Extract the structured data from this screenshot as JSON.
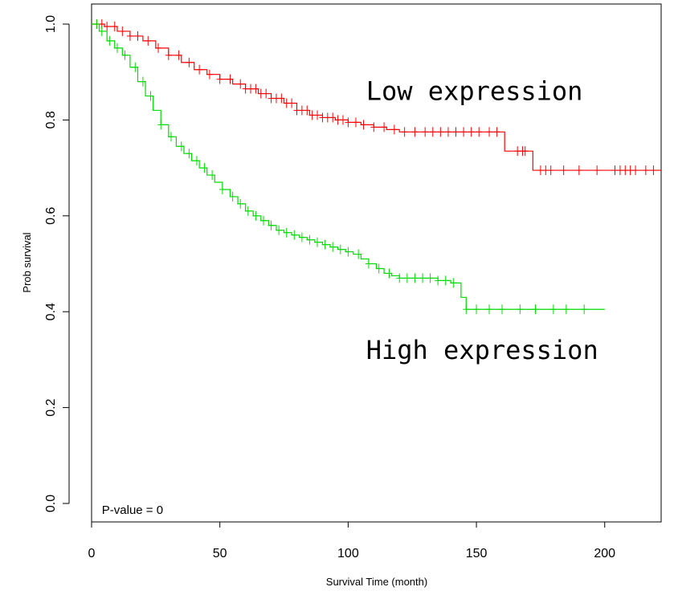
{
  "chart_data": {
    "type": "line",
    "step": true,
    "title": "",
    "xlabel": "Survival Time (month)",
    "ylabel": "Prob survival",
    "xlim": [
      0,
      222
    ],
    "ylim": [
      0,
      1.0
    ],
    "xticks": [
      0,
      50,
      100,
      150,
      200
    ],
    "yticks": [
      0.0,
      0.2,
      0.4,
      0.6,
      0.8,
      1.0
    ],
    "ytick_labels": [
      "0.0",
      "0.2",
      "0.4",
      "0.6",
      "0.8",
      "1.0"
    ],
    "grid": false,
    "legend": "none",
    "annotations": [
      {
        "text": "Low expression",
        "x": 107,
        "y": 0.86
      },
      {
        "text": "High expression",
        "x": 107,
        "y": 0.32
      },
      {
        "text": "P-value = 0",
        "x": 4,
        "y": 0.0
      }
    ],
    "series": [
      {
        "color": "#ff0000",
        "x": [
          0,
          5,
          10,
          15,
          20,
          25,
          30,
          35,
          40,
          45,
          50,
          55,
          60,
          65,
          70,
          75,
          80,
          85,
          90,
          95,
          100,
          105,
          110,
          115,
          120,
          125,
          130,
          140,
          150,
          160,
          161,
          170,
          172,
          180,
          190,
          200,
          210,
          213,
          216,
          219,
          222
        ],
        "y": [
          1.0,
          0.995,
          0.985,
          0.975,
          0.965,
          0.95,
          0.935,
          0.92,
          0.905,
          0.895,
          0.885,
          0.875,
          0.865,
          0.855,
          0.845,
          0.835,
          0.82,
          0.81,
          0.805,
          0.8,
          0.795,
          0.79,
          0.785,
          0.78,
          0.775,
          0.775,
          0.775,
          0.775,
          0.775,
          0.775,
          0.735,
          0.735,
          0.695,
          0.695,
          0.695,
          0.695,
          0.695,
          0.695,
          0.695,
          0.695,
          0.695
        ],
        "censor_x": [
          2,
          4,
          6,
          9,
          12,
          15,
          18,
          22,
          26,
          30,
          34,
          38,
          42,
          46,
          50,
          54,
          58,
          60,
          62,
          64,
          66,
          68,
          70,
          72,
          74,
          76,
          78,
          80,
          82,
          84,
          86,
          88,
          90,
          92,
          94,
          96,
          98,
          100,
          103,
          106,
          110,
          114,
          118,
          122,
          126,
          130,
          133,
          136,
          139,
          142,
          145,
          148,
          151,
          155,
          158,
          166,
          168,
          169,
          175,
          177,
          179,
          184,
          190,
          197,
          204,
          206,
          208,
          210,
          212,
          216,
          219
        ]
      },
      {
        "color": "#00dd00",
        "x": [
          0,
          3,
          6,
          9,
          12,
          15,
          18,
          21,
          24,
          27,
          30,
          33,
          36,
          39,
          42,
          45,
          48,
          51,
          54,
          57,
          60,
          63,
          66,
          69,
          72,
          75,
          78,
          81,
          84,
          87,
          90,
          93,
          96,
          99,
          102,
          105,
          108,
          111,
          114,
          117,
          120,
          125,
          130,
          135,
          140,
          144,
          146,
          150,
          160,
          170,
          180,
          190,
          200
        ],
        "y": [
          1.0,
          0.985,
          0.965,
          0.95,
          0.935,
          0.91,
          0.88,
          0.85,
          0.82,
          0.79,
          0.765,
          0.745,
          0.73,
          0.715,
          0.7,
          0.685,
          0.67,
          0.655,
          0.64,
          0.625,
          0.61,
          0.6,
          0.59,
          0.58,
          0.57,
          0.565,
          0.56,
          0.555,
          0.55,
          0.545,
          0.54,
          0.535,
          0.53,
          0.525,
          0.52,
          0.51,
          0.5,
          0.49,
          0.48,
          0.475,
          0.47,
          0.47,
          0.47,
          0.465,
          0.46,
          0.43,
          0.405,
          0.405,
          0.405,
          0.405,
          0.405,
          0.405,
          0.405
        ],
        "censor_x": [
          2,
          4,
          7,
          10,
          13,
          17,
          20,
          23,
          27,
          31,
          35,
          38,
          41,
          44,
          47,
          51,
          55,
          58,
          61,
          64,
          67,
          70,
          73,
          76,
          79,
          82,
          85,
          88,
          91,
          94,
          97,
          100,
          104,
          108,
          112,
          116,
          120,
          123,
          126,
          129,
          132,
          135,
          138,
          141,
          146,
          150,
          155,
          160,
          167,
          173,
          180,
          185,
          192
        ]
      }
    ]
  }
}
